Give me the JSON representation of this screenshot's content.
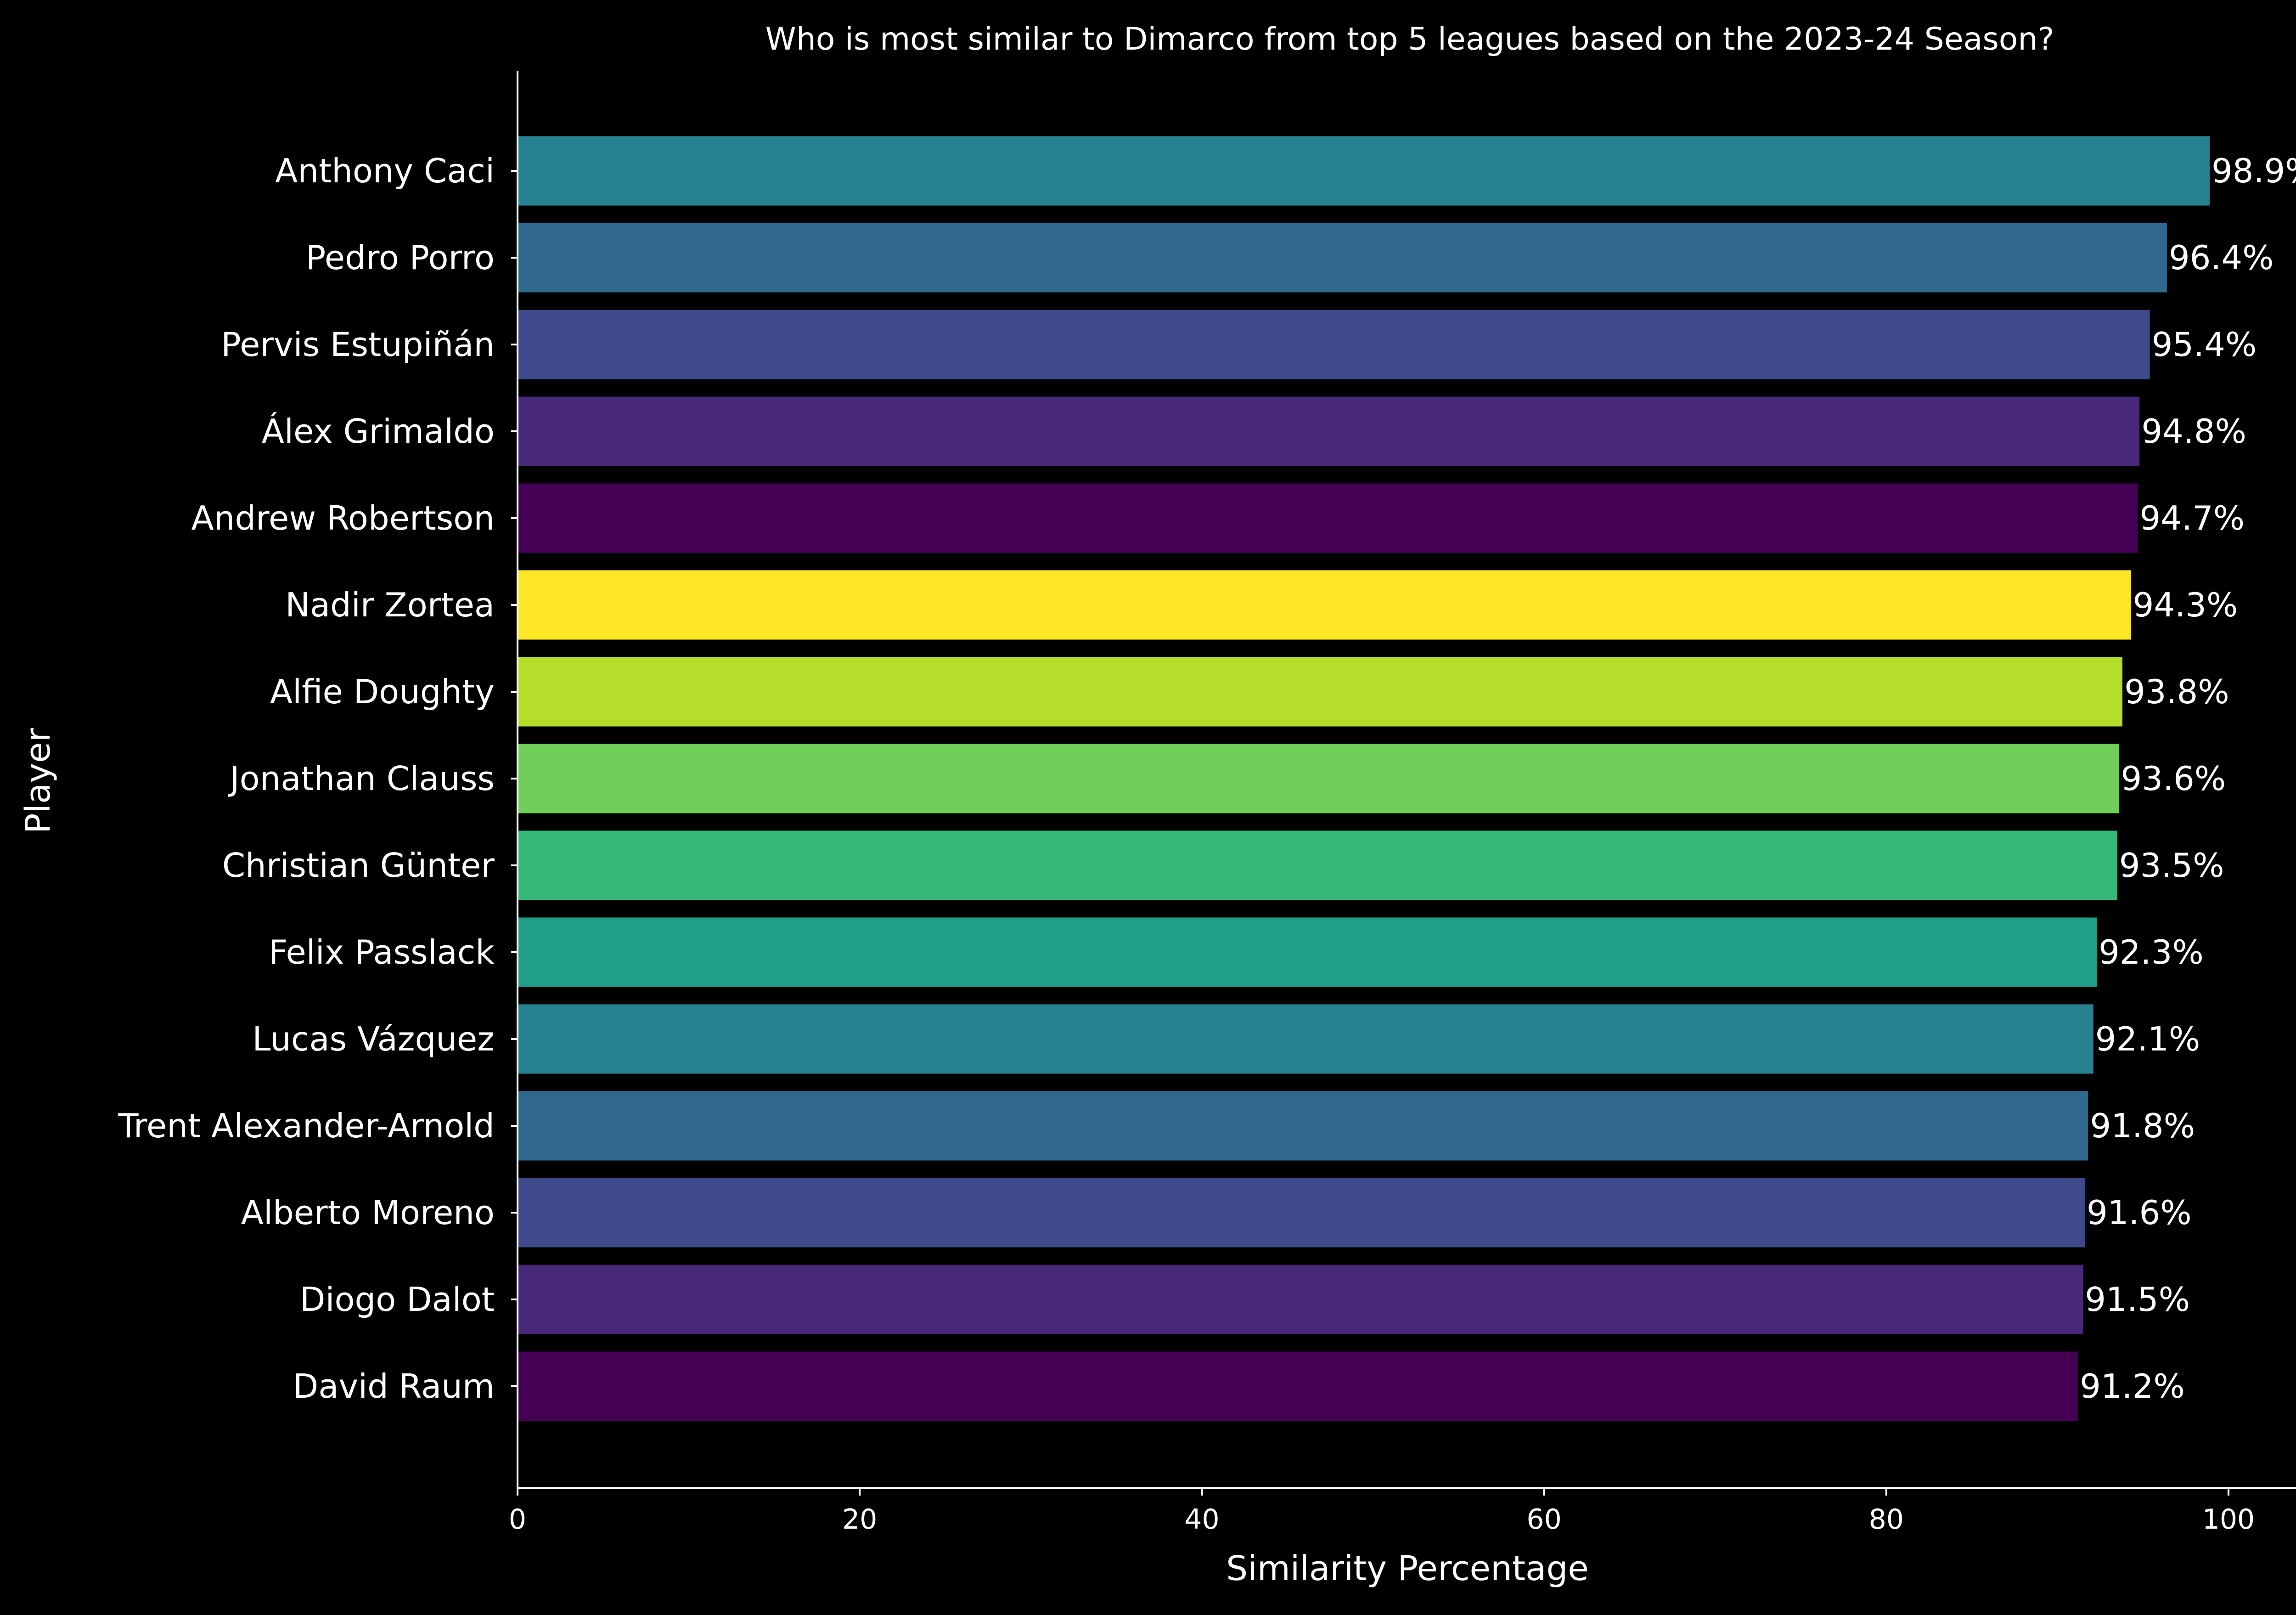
{
  "chart_data": {
    "type": "bar",
    "orientation": "horizontal",
    "title": "Who is most similar to Dimarco from top 5 leagues based on the 2023-24 Season?",
    "xlabel": "Similarity Percentage",
    "ylabel": "Player",
    "xlim": [
      0,
      104
    ],
    "xticks": [
      0,
      20,
      40,
      60,
      80,
      100
    ],
    "grid": false,
    "background": "#000000",
    "categories": [
      "Anthony Caci",
      "Pedro Porro",
      "Pervis Estupiñán",
      "Álex Grimaldo",
      "Andrew Robertson",
      "Nadir Zortea",
      "Alfie Doughty",
      "Jonathan Clauss",
      "Christian Günter",
      "Felix Passlack",
      "Lucas Vázquez",
      "Trent Alexander-Arnold",
      "Alberto Moreno",
      "Diogo Dalot",
      "David Raum"
    ],
    "values": [
      98.9,
      96.4,
      95.4,
      94.8,
      94.7,
      94.3,
      93.8,
      93.6,
      93.5,
      92.3,
      92.1,
      91.8,
      91.6,
      91.5,
      91.2
    ],
    "value_labels": [
      "98.9%",
      "96.4%",
      "95.4%",
      "94.8%",
      "94.7%",
      "94.3%",
      "93.8%",
      "93.6%",
      "93.5%",
      "92.3%",
      "92.1%",
      "91.8%",
      "91.6%",
      "91.5%",
      "91.2%"
    ],
    "colors": [
      "#26828e",
      "#31688e",
      "#3e4a89",
      "#482878",
      "#440154",
      "#fde725",
      "#b5de2b",
      "#6ece58",
      "#35b779",
      "#1f9e89",
      "#26828e",
      "#31688e",
      "#3e4a89",
      "#482878",
      "#440154"
    ]
  }
}
